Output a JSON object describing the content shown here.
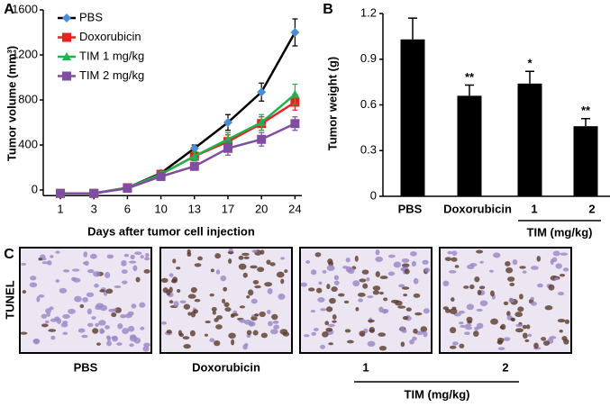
{
  "chart_data": [
    {
      "type": "line",
      "panel": "A",
      "y_label": "Tumor volume (mm³)",
      "x_label": "Days after tumor cell injection",
      "categories": [
        "1",
        "3",
        "6",
        "10",
        "13",
        "17",
        "20",
        "24"
      ],
      "ylim": [
        -50,
        1600
      ],
      "yticks": [
        0,
        400,
        800,
        1200,
        1600
      ],
      "legend": "upper-left",
      "series": [
        {
          "name": "PBS",
          "color": "#4a8fd6",
          "line_color": "#000000",
          "marker": "diamond",
          "values": [
            -30,
            -30,
            20,
            150,
            370,
            600,
            870,
            1400
          ],
          "errors": [
            0,
            0,
            0,
            20,
            30,
            70,
            80,
            120
          ]
        },
        {
          "name": "Doxorubicin",
          "color": "#e8221e",
          "line_color": "#e8221e",
          "marker": "square",
          "values": [
            -30,
            -30,
            20,
            140,
            300,
            430,
            590,
            780
          ],
          "errors": [
            0,
            0,
            0,
            20,
            40,
            60,
            60,
            70
          ]
        },
        {
          "name": "TIM 1 mg/kg",
          "color": "#22b14c",
          "line_color": "#22b14c",
          "marker": "triangle",
          "values": [
            -30,
            -30,
            20,
            140,
            300,
            450,
            600,
            850
          ],
          "errors": [
            0,
            0,
            0,
            20,
            40,
            60,
            70,
            90
          ]
        },
        {
          "name": "TIM 2 mg/kg",
          "color": "#7f4ea0",
          "line_color": "#7f4ea0",
          "marker": "square",
          "values": [
            -30,
            -30,
            15,
            120,
            210,
            370,
            450,
            590
          ],
          "errors": [
            0,
            0,
            0,
            20,
            30,
            60,
            60,
            60
          ]
        }
      ]
    },
    {
      "type": "bar",
      "panel": "B",
      "y_label": "Tumor weight (g)",
      "group_label": "TIM (mg/kg)",
      "categories": [
        "PBS",
        "Doxorubicin",
        "1",
        "2"
      ],
      "values": [
        1.03,
        0.66,
        0.74,
        0.46
      ],
      "errors": [
        0.14,
        0.07,
        0.08,
        0.05
      ],
      "significance": [
        null,
        "**",
        "*",
        "**"
      ],
      "color": "#000000",
      "ylim": [
        0,
        1.2
      ],
      "yticks": [
        0,
        0.3,
        0.6,
        0.9,
        1.2
      ]
    }
  ],
  "panel_c": {
    "panel": "C",
    "stain": "TUNEL",
    "labels": [
      "PBS",
      "Doxorubicin",
      "1",
      "2"
    ],
    "group_label": "TIM (mg/kg)"
  }
}
